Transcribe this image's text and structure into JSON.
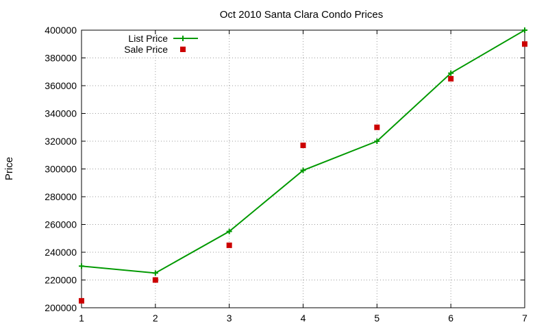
{
  "chart_data": {
    "type": "line",
    "title": "Oct 2010 Santa Clara Condo Prices",
    "xlabel": "",
    "ylabel": "Price",
    "x": [
      1,
      2,
      3,
      4,
      5,
      6,
      7
    ],
    "xlim": [
      1,
      7
    ],
    "ylim": [
      200000,
      400000
    ],
    "x_ticks": [
      "1",
      "2",
      "3",
      "4",
      "5",
      "6",
      "7"
    ],
    "y_ticks": [
      "200000",
      "220000",
      "240000",
      "260000",
      "280000",
      "300000",
      "320000",
      "340000",
      "360000",
      "380000",
      "400000"
    ],
    "grid": true,
    "legend_position": "top-left",
    "series": [
      {
        "name": "List Price",
        "style": "line-plus",
        "color": "#009900",
        "values": [
          230000,
          225000,
          255000,
          299000,
          320000,
          369000,
          400000
        ]
      },
      {
        "name": "Sale Price",
        "style": "square-marker",
        "color": "#cc0000",
        "values": [
          205000,
          220000,
          245000,
          317000,
          330000,
          365000,
          390000
        ]
      }
    ]
  }
}
